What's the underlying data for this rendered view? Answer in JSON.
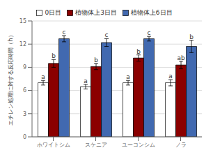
{
  "chart_data": {
    "type": "bar",
    "categories": [
      "ホワイトシム",
      "スケニア",
      "ユーコンシム",
      "ノラ"
    ],
    "series": [
      {
        "name": "0日目",
        "color": "#ffffff",
        "values": [
          7.0,
          6.5,
          7.0,
          7.0
        ],
        "errors": [
          0.3,
          0.3,
          0.3,
          0.4
        ],
        "letters": [
          "a",
          "a",
          "a",
          "a"
        ]
      },
      {
        "name": "植物体上3日目",
        "color": "#8b0000",
        "values": [
          9.5,
          9.1,
          10.2,
          9.3
        ],
        "errors": [
          0.5,
          0.4,
          0.4,
          0.5
        ],
        "letters": [
          "b",
          "b",
          "b",
          "ab"
        ]
      },
      {
        "name": "植物体上6日目",
        "color": "#4169b0",
        "values": [
          12.7,
          12.2,
          12.7,
          11.7
        ],
        "errors": [
          0.4,
          0.5,
          0.3,
          0.8
        ],
        "letters": [
          "c",
          "c",
          "c",
          "b"
        ]
      }
    ],
    "ylabel": "エチレン処理に対する反応時間（h）",
    "ylim": [
      0,
      15
    ],
    "yticks": [
      0,
      3,
      6,
      9,
      12,
      15
    ],
    "grid": true,
    "legend": "top"
  }
}
